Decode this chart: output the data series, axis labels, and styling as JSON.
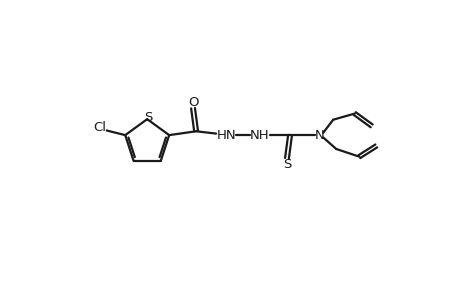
{
  "background_color": "#ffffff",
  "line_color": "#1a1a1a",
  "line_width": 1.6,
  "figsize": [
    4.6,
    3.0
  ],
  "dpi": 100,
  "xlim": [
    0,
    460
  ],
  "ylim": [
    0,
    300
  ]
}
